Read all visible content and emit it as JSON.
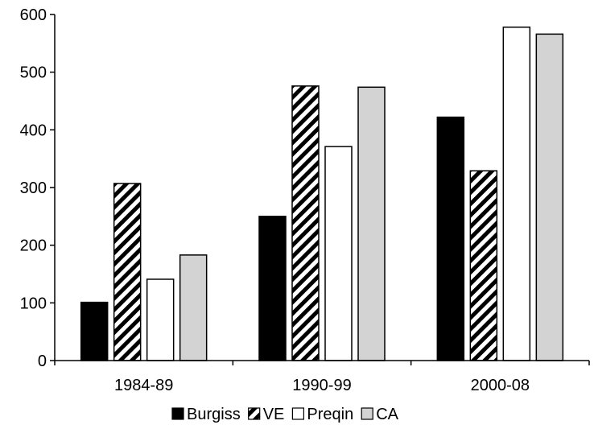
{
  "chart_data": {
    "type": "bar",
    "categories": [
      "1984-89",
      "1990-99",
      "2000-08"
    ],
    "series": [
      {
        "name": "Burgiss",
        "values": [
          101,
          250,
          422
        ],
        "fill": "#000000",
        "pattern": "solid"
      },
      {
        "name": "VE",
        "values": [
          307,
          476,
          329
        ],
        "fill": "#ffffff",
        "pattern": "diagonal-hatch"
      },
      {
        "name": "Preqin",
        "values": [
          141,
          371,
          578
        ],
        "fill": "#ffffff",
        "pattern": "solid"
      },
      {
        "name": "CA",
        "values": [
          183,
          474,
          566
        ],
        "fill": "#d3d3d3",
        "pattern": "solid"
      }
    ],
    "title": "",
    "xlabel": "",
    "ylabel": "",
    "ylim": [
      0,
      600
    ],
    "yticks": [
      0,
      100,
      200,
      300,
      400,
      500,
      600
    ],
    "grid": false,
    "legend": "bottom"
  }
}
